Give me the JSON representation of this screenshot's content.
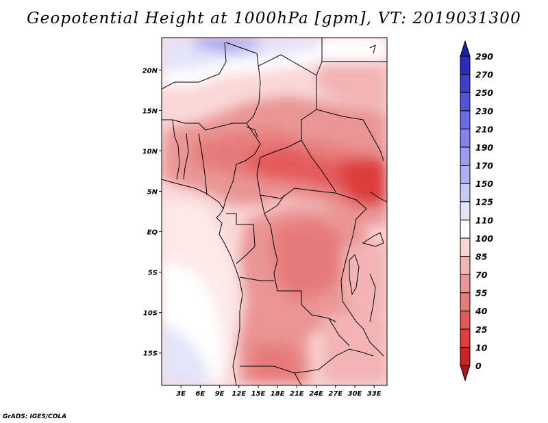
{
  "title": "Geopotential Height at 1000hPa [gpm], VT: 2019031300",
  "credit": "GrADS: IGES/COLA",
  "map": {
    "variable": "Geopotential Height",
    "level": "1000hPa",
    "units": "gpm",
    "valid_time": "2019031300",
    "lon_range": [
      0,
      35
    ],
    "lat_range": [
      -19,
      24
    ],
    "lon_ticks": [
      {
        "lon": 3,
        "label": "3E"
      },
      {
        "lon": 6,
        "label": "6E"
      },
      {
        "lon": 9,
        "label": "9E"
      },
      {
        "lon": 12,
        "label": "12E"
      },
      {
        "lon": 15,
        "label": "15E"
      },
      {
        "lon": 18,
        "label": "18E"
      },
      {
        "lon": 21,
        "label": "21E"
      },
      {
        "lon": 24,
        "label": "24E"
      },
      {
        "lon": 27,
        "label": "27E"
      },
      {
        "lon": 30,
        "label": "30E"
      },
      {
        "lon": 33,
        "label": "33E"
      }
    ],
    "lat_ticks": [
      {
        "lat": 20,
        "label": "20N"
      },
      {
        "lat": 15,
        "label": "15N"
      },
      {
        "lat": 10,
        "label": "10N"
      },
      {
        "lat": 5,
        "label": "5N"
      },
      {
        "lat": 0,
        "label": "EQ"
      },
      {
        "lat": -5,
        "label": "5S"
      },
      {
        "lat": -10,
        "label": "10S"
      },
      {
        "lat": -15,
        "label": "15S"
      }
    ]
  },
  "colorbar": {
    "levels": [
      "0",
      "10",
      "25",
      "40",
      "55",
      "70",
      "85",
      "100",
      "110",
      "125",
      "150",
      "170",
      "190",
      "210",
      "230",
      "250",
      "270",
      "290"
    ],
    "colors": [
      "#a01b1b",
      "#c62424",
      "#dd3d3d",
      "#e45a5a",
      "#e77a7a",
      "#ea9595",
      "#f2b4b4",
      "#fad7d7",
      "#ffffff",
      "#e4e4fa",
      "#c9c9f5",
      "#b0b0f1",
      "#9a9aef",
      "#8282ea",
      "#6b6be3",
      "#5353d9",
      "#3e3ecd",
      "#2b2bbb",
      "#1f1f9a"
    ]
  }
}
